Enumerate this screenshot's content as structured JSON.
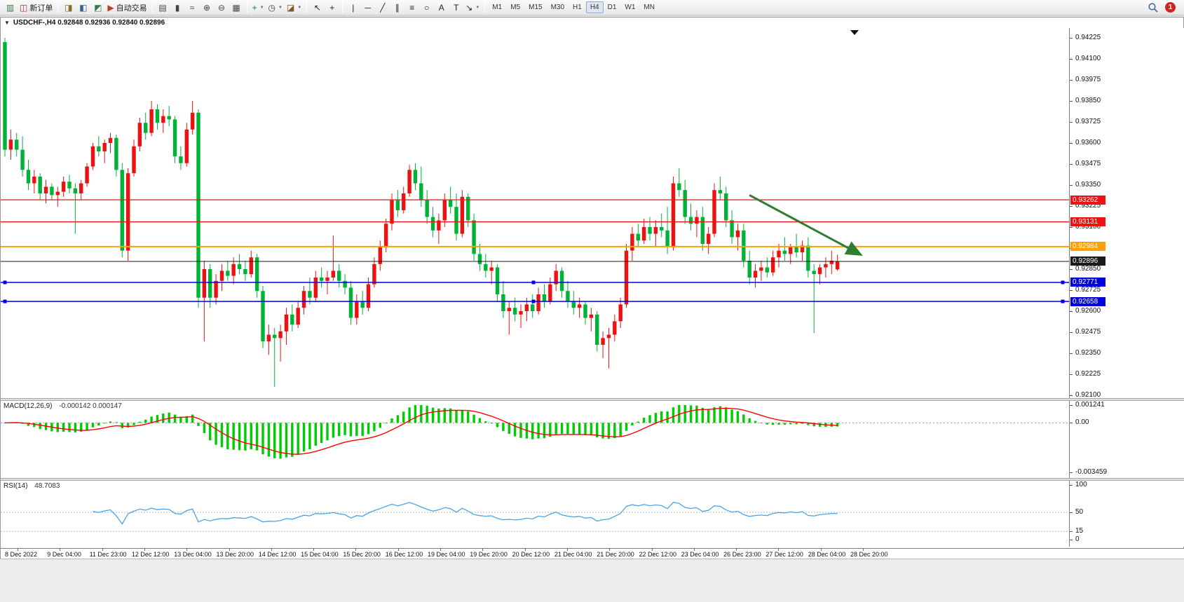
{
  "toolbar": {
    "groups": [
      {
        "items": [
          {
            "name": "new-chart-button",
            "icon": "chart-window-icon",
            "glyph": "▥",
            "color": "#2f7d44"
          },
          {
            "name": "new-order-button",
            "icon": "new-order-icon",
            "glyph": "◫",
            "color": "#b03030",
            "label": "新订单"
          }
        ]
      },
      {
        "items": [
          {
            "name": "profiles-button",
            "icon": "profiles-icon",
            "glyph": "◨",
            "color": "#8a6d1f"
          },
          {
            "name": "charts-list-button",
            "icon": "charts-list-icon",
            "glyph": "◧",
            "color": "#3a5f9f"
          },
          {
            "name": "navigator-button",
            "icon": "navigator-icon",
            "glyph": "◩",
            "color": "#2f7d4f"
          },
          {
            "name": "autotrading-button",
            "icon": "autotrading-icon",
            "glyph": "▶",
            "color": "#c23b22",
            "label": "自动交易"
          }
        ]
      },
      {
        "items": [
          {
            "name": "bar-chart-type-button",
            "icon": "ohlc-bars-icon",
            "glyph": "▤",
            "color": "#444444"
          },
          {
            "name": "candlestick-type-button",
            "icon": "candlestick-icon",
            "glyph": "▮",
            "color": "#444444"
          },
          {
            "name": "line-chart-type-button",
            "icon": "line-chart-icon",
            "glyph": "≈",
            "color": "#444444"
          },
          {
            "name": "zoom-in-button",
            "icon": "zoom-in-icon",
            "glyph": "⊕",
            "color": "#444444"
          },
          {
            "name": "zoom-out-button",
            "icon": "zoom-out-icon",
            "glyph": "⊖",
            "color": "#444444"
          },
          {
            "name": "tile-windows-button",
            "icon": "tile-windows-icon",
            "glyph": "▦",
            "color": "#444444"
          }
        ]
      },
      {
        "items": [
          {
            "name": "indicators-button",
            "icon": "add-indicator-icon",
            "glyph": "+",
            "color": "#1d7a1d",
            "caret": true
          },
          {
            "name": "periods-button",
            "icon": "clock-icon",
            "glyph": "◷",
            "color": "#444444",
            "caret": true
          },
          {
            "name": "templates-button",
            "icon": "template-icon",
            "glyph": "◪",
            "color": "#7a5c1d",
            "caret": true
          }
        ]
      },
      {
        "items": [
          {
            "name": "cursor-button",
            "icon": "cursor-icon",
            "glyph": "↖",
            "color": "#222222"
          },
          {
            "name": "crosshair-button",
            "icon": "crosshair-icon",
            "glyph": "+",
            "color": "#222222"
          }
        ]
      },
      {
        "items": [
          {
            "name": "vertical-line-button",
            "icon": "vertical-line-icon",
            "glyph": "|",
            "color": "#222222"
          },
          {
            "name": "horizontal-line-button",
            "icon": "horizontal-line-icon",
            "glyph": "─",
            "color": "#222222"
          },
          {
            "name": "trendline-button",
            "icon": "trendline-icon",
            "glyph": "╱",
            "color": "#222222"
          },
          {
            "name": "channel-button",
            "icon": "channel-icon",
            "glyph": "∥",
            "color": "#222222"
          },
          {
            "name": "fibonacci-button",
            "icon": "fibonacci-icon",
            "glyph": "≡",
            "color": "#222222"
          },
          {
            "name": "shapes-button",
            "icon": "shapes-icon",
            "glyph": "○",
            "color": "#222222"
          },
          {
            "name": "text-button",
            "icon": "text-icon",
            "glyph": "A",
            "color": "#222222"
          },
          {
            "name": "text-label-button",
            "icon": "text-label-icon",
            "glyph": "T",
            "color": "#222222"
          },
          {
            "name": "arrows-button",
            "icon": "arrow-tool-icon",
            "glyph": "↘",
            "color": "#222222",
            "caret": true
          }
        ]
      }
    ],
    "timeframes": [
      "M1",
      "M5",
      "M15",
      "M30",
      "H1",
      "H4",
      "D1",
      "W1",
      "MN"
    ],
    "active_timeframe": "H4",
    "notification_count": "1"
  },
  "chart_window": {
    "title": "USDCHF-,H4  0.92848 0.92936 0.92840 0.92896"
  },
  "chart_data": {
    "type": "candlestick",
    "symbol": "USDCHF-",
    "timeframe": "H4",
    "current_ohlc": {
      "open": 0.92848,
      "high": 0.92936,
      "low": 0.9284,
      "close": 0.92896
    },
    "price_axis": {
      "min": 0.921,
      "max": 0.94225,
      "step": 0.00125,
      "ticks": [
        "0.94225",
        "0.94100",
        "0.93975",
        "0.93850",
        "0.93725",
        "0.93600",
        "0.93475",
        "0.93350",
        "0.93225",
        "0.93100",
        "0.92975",
        "0.92850",
        "0.92725",
        "0.92600",
        "0.92475",
        "0.92350",
        "0.92225",
        "0.92100"
      ]
    },
    "time_labels": [
      "8 Dec 2022",
      "9 Dec 04:00",
      "11 Dec 23:00",
      "12 Dec 12:00",
      "13 Dec 04:00",
      "13 Dec 20:00",
      "14 Dec 12:00",
      "15 Dec 04:00",
      "15 Dec 20:00",
      "16 Dec 12:00",
      "19 Dec 04:00",
      "19 Dec 20:00",
      "20 Dec 12:00",
      "21 Dec 04:00",
      "21 Dec 20:00",
      "22 Dec 12:00",
      "23 Dec 04:00",
      "26 Dec 23:00",
      "27 Dec 12:00",
      "28 Dec 04:00",
      "28 Dec 20:00"
    ],
    "levels": [
      {
        "name": "resistance-line-1",
        "label": "0.93262",
        "price": 0.93262,
        "color": "#ee1111",
        "width": 1.3,
        "style": "solid"
      },
      {
        "name": "resistance-line-2",
        "label": "0.93131",
        "price": 0.93131,
        "color": "#ee1111",
        "width": 1.3,
        "style": "solid"
      },
      {
        "name": "pivot-line",
        "label": "0.92984",
        "price": 0.92984,
        "color": "#ffa000",
        "width": 2,
        "style": "solid"
      },
      {
        "name": "bid-price-line",
        "label": "0.92896",
        "price": 0.92896,
        "color": "#1a1a1a",
        "width": 1,
        "style": "solid"
      },
      {
        "name": "support-line-1",
        "label": "0.92771",
        "price": 0.92771,
        "color": "#0000dd",
        "width": 1.5,
        "style": "solid",
        "selected": true
      },
      {
        "name": "support-line-2",
        "label": "0.92658",
        "price": 0.92658,
        "color": "#0000dd",
        "width": 1.5,
        "style": "solid",
        "selected": true
      }
    ],
    "arrow": {
      "name": "trend-arrow",
      "from_index": 127,
      "from_price": 0.9329,
      "to_index": 146,
      "to_price": 0.92935,
      "color": "#2f7d32",
      "width": 3
    },
    "colors": {
      "up_candle": "#ee1111",
      "down_candle": "#00b336",
      "macd_histogram": "#00cc00",
      "macd_signal": "#ff0000",
      "rsi_line": "#4aa3e8",
      "background": "#ffffff"
    },
    "indicators": {
      "macd": {
        "label": "MACD(12,26,9)",
        "values_text": "-0.000142 0.000147",
        "fast": 12,
        "slow": 26,
        "signal_period": 9,
        "axis_max": 0.001241,
        "axis_min": -0.003459,
        "axis_max_label": "0.001241",
        "axis_zero_label": "0.00",
        "axis_min_label": "-0.003459"
      },
      "rsi": {
        "label": "RSI(14)",
        "value_text": "48.7083",
        "period": 14,
        "levels": [
          50,
          15
        ],
        "axis_labels": [
          "100",
          "50",
          "15",
          "0"
        ]
      }
    },
    "candles": [
      [
        0.942,
        0.94225,
        0.9352,
        0.9356
      ],
      [
        0.9356,
        0.9368,
        0.935,
        0.9362
      ],
      [
        0.9362,
        0.9366,
        0.9352,
        0.9356
      ],
      [
        0.9356,
        0.9364,
        0.934,
        0.9344
      ],
      [
        0.9344,
        0.935,
        0.9332,
        0.9336
      ],
      [
        0.9336,
        0.9344,
        0.933,
        0.934
      ],
      [
        0.934,
        0.9342,
        0.9326,
        0.933
      ],
      [
        0.933,
        0.9338,
        0.9324,
        0.9334
      ],
      [
        0.9334,
        0.9336,
        0.9326,
        0.9329
      ],
      [
        0.9329,
        0.9334,
        0.9322,
        0.9331
      ],
      [
        0.9331,
        0.934,
        0.9328,
        0.9337
      ],
      [
        0.9337,
        0.9341,
        0.933,
        0.9333
      ],
      [
        0.9333,
        0.9336,
        0.9306,
        0.933
      ],
      [
        0.933,
        0.9338,
        0.9326,
        0.9336
      ],
      [
        0.9336,
        0.9348,
        0.9334,
        0.9346
      ],
      [
        0.9346,
        0.936,
        0.9344,
        0.9358
      ],
      [
        0.9358,
        0.9364,
        0.9352,
        0.9355
      ],
      [
        0.9355,
        0.9362,
        0.9348,
        0.936
      ],
      [
        0.936,
        0.9366,
        0.9354,
        0.9363
      ],
      [
        0.9363,
        0.9365,
        0.934,
        0.9344
      ],
      [
        0.9344,
        0.9348,
        0.9292,
        0.9296
      ],
      [
        0.9296,
        0.9345,
        0.929,
        0.9342
      ],
      [
        0.9342,
        0.9362,
        0.934,
        0.9358
      ],
      [
        0.9358,
        0.9375,
        0.9355,
        0.9372
      ],
      [
        0.9372,
        0.9378,
        0.9362,
        0.9366
      ],
      [
        0.9366,
        0.9385,
        0.9364,
        0.938
      ],
      [
        0.938,
        0.9383,
        0.9368,
        0.9372
      ],
      [
        0.9372,
        0.938,
        0.9366,
        0.9376
      ],
      [
        0.9376,
        0.9382,
        0.937,
        0.9374
      ],
      [
        0.9374,
        0.9376,
        0.9348,
        0.9352
      ],
      [
        0.9352,
        0.9358,
        0.9344,
        0.9348
      ],
      [
        0.9348,
        0.9372,
        0.9346,
        0.9368
      ],
      [
        0.9368,
        0.9385,
        0.9365,
        0.9378
      ],
      [
        0.9378,
        0.938,
        0.9262,
        0.9268
      ],
      [
        0.9268,
        0.929,
        0.9242,
        0.9285
      ],
      [
        0.9285,
        0.9288,
        0.9262,
        0.9268
      ],
      [
        0.9268,
        0.9282,
        0.9264,
        0.9278
      ],
      [
        0.9278,
        0.9288,
        0.9272,
        0.9284
      ],
      [
        0.9284,
        0.929,
        0.9278,
        0.9281
      ],
      [
        0.9281,
        0.9292,
        0.9276,
        0.9288
      ],
      [
        0.9288,
        0.9294,
        0.9282,
        0.9285
      ],
      [
        0.9285,
        0.929,
        0.9278,
        0.9282
      ],
      [
        0.9282,
        0.9296,
        0.928,
        0.9292
      ],
      [
        0.9292,
        0.9294,
        0.9268,
        0.9272
      ],
      [
        0.9272,
        0.9275,
        0.9238,
        0.9242
      ],
      [
        0.9242,
        0.9252,
        0.9234,
        0.9246
      ],
      [
        0.9246,
        0.925,
        0.9215,
        0.9244
      ],
      [
        0.9244,
        0.9252,
        0.923,
        0.9248
      ],
      [
        0.9248,
        0.9262,
        0.924,
        0.9258
      ],
      [
        0.9258,
        0.9264,
        0.9248,
        0.9252
      ],
      [
        0.9252,
        0.9266,
        0.925,
        0.9262
      ],
      [
        0.9262,
        0.9275,
        0.9258,
        0.9272
      ],
      [
        0.9272,
        0.928,
        0.9264,
        0.9268
      ],
      [
        0.9268,
        0.9284,
        0.9266,
        0.928
      ],
      [
        0.928,
        0.9286,
        0.9274,
        0.9278
      ],
      [
        0.9278,
        0.9284,
        0.927,
        0.928
      ],
      [
        0.928,
        0.9305,
        0.9278,
        0.9284
      ],
      [
        0.9284,
        0.9288,
        0.9274,
        0.9278
      ],
      [
        0.9278,
        0.9282,
        0.927,
        0.9274
      ],
      [
        0.9274,
        0.9278,
        0.9252,
        0.9256
      ],
      [
        0.9256,
        0.927,
        0.9252,
        0.9266
      ],
      [
        0.9266,
        0.9272,
        0.9258,
        0.9262
      ],
      [
        0.9262,
        0.928,
        0.926,
        0.9276
      ],
      [
        0.9276,
        0.9292,
        0.9274,
        0.9288
      ],
      [
        0.9288,
        0.9302,
        0.9284,
        0.9298
      ],
      [
        0.9298,
        0.9315,
        0.9295,
        0.9312
      ],
      [
        0.9312,
        0.933,
        0.9308,
        0.9326
      ],
      [
        0.9326,
        0.9332,
        0.9316,
        0.932
      ],
      [
        0.932,
        0.9334,
        0.9318,
        0.933
      ],
      [
        0.933,
        0.9347,
        0.9328,
        0.9344
      ],
      [
        0.9344,
        0.9348,
        0.9332,
        0.9336
      ],
      [
        0.9336,
        0.9346,
        0.9322,
        0.9326
      ],
      [
        0.9326,
        0.9332,
        0.9312,
        0.9316
      ],
      [
        0.9316,
        0.9322,
        0.9304,
        0.9308
      ],
      [
        0.9308,
        0.9318,
        0.93,
        0.9314
      ],
      [
        0.9314,
        0.933,
        0.931,
        0.9326
      ],
      [
        0.9326,
        0.9334,
        0.9318,
        0.9322
      ],
      [
        0.9322,
        0.933,
        0.9302,
        0.9306
      ],
      [
        0.9306,
        0.9332,
        0.9304,
        0.9328
      ],
      [
        0.9328,
        0.933,
        0.931,
        0.9314
      ],
      [
        0.9314,
        0.9318,
        0.929,
        0.9294
      ],
      [
        0.9294,
        0.93,
        0.9284,
        0.9288
      ],
      [
        0.9288,
        0.9294,
        0.928,
        0.9284
      ],
      [
        0.9284,
        0.929,
        0.9276,
        0.9286
      ],
      [
        0.9286,
        0.9288,
        0.9266,
        0.927
      ],
      [
        0.927,
        0.9278,
        0.9256,
        0.926
      ],
      [
        0.926,
        0.9266,
        0.9246,
        0.9262
      ],
      [
        0.9262,
        0.9268,
        0.9254,
        0.9258
      ],
      [
        0.9258,
        0.9264,
        0.925,
        0.926
      ],
      [
        0.926,
        0.9268,
        0.9254,
        0.9264
      ],
      [
        0.9264,
        0.927,
        0.9256,
        0.926
      ],
      [
        0.926,
        0.9274,
        0.9258,
        0.927
      ],
      [
        0.927,
        0.9276,
        0.9262,
        0.9266
      ],
      [
        0.9266,
        0.928,
        0.9264,
        0.9276
      ],
      [
        0.9276,
        0.9288,
        0.9272,
        0.9284
      ],
      [
        0.9284,
        0.9286,
        0.9268,
        0.9272
      ],
      [
        0.9272,
        0.9278,
        0.9262,
        0.9266
      ],
      [
        0.9266,
        0.9272,
        0.9258,
        0.9262
      ],
      [
        0.9262,
        0.9268,
        0.9256,
        0.9264
      ],
      [
        0.9264,
        0.9266,
        0.9252,
        0.9256
      ],
      [
        0.9256,
        0.9262,
        0.9248,
        0.9258
      ],
      [
        0.9258,
        0.926,
        0.9236,
        0.924
      ],
      [
        0.924,
        0.9248,
        0.9232,
        0.9244
      ],
      [
        0.9244,
        0.925,
        0.9226,
        0.9246
      ],
      [
        0.9246,
        0.9258,
        0.9242,
        0.9254
      ],
      [
        0.9254,
        0.9268,
        0.925,
        0.9264
      ],
      [
        0.9264,
        0.93,
        0.9262,
        0.9296
      ],
      [
        0.9296,
        0.931,
        0.929,
        0.9306
      ],
      [
        0.9306,
        0.9312,
        0.9298,
        0.9302
      ],
      [
        0.9302,
        0.9315,
        0.93,
        0.931
      ],
      [
        0.931,
        0.9316,
        0.9302,
        0.9306
      ],
      [
        0.9306,
        0.9314,
        0.9298,
        0.931
      ],
      [
        0.931,
        0.9318,
        0.9304,
        0.9308
      ],
      [
        0.9308,
        0.9322,
        0.9294,
        0.9298
      ],
      [
        0.9298,
        0.934,
        0.9296,
        0.9336
      ],
      [
        0.9336,
        0.9345,
        0.9328,
        0.9332
      ],
      [
        0.9332,
        0.9338,
        0.9312,
        0.9316
      ],
      [
        0.9316,
        0.9324,
        0.9308,
        0.9312
      ],
      [
        0.9312,
        0.932,
        0.9304,
        0.9316
      ],
      [
        0.9316,
        0.9322,
        0.9296,
        0.93
      ],
      [
        0.93,
        0.931,
        0.9294,
        0.9306
      ],
      [
        0.9306,
        0.9336,
        0.9304,
        0.9332
      ],
      [
        0.9332,
        0.934,
        0.9326,
        0.933
      ],
      [
        0.933,
        0.9334,
        0.931,
        0.9314
      ],
      [
        0.9314,
        0.932,
        0.93,
        0.9304
      ],
      [
        0.9304,
        0.9312,
        0.9296,
        0.9308
      ],
      [
        0.9308,
        0.9312,
        0.9286,
        0.929
      ],
      [
        0.929,
        0.9296,
        0.9276,
        0.928
      ],
      [
        0.928,
        0.9288,
        0.9274,
        0.9284
      ],
      [
        0.9284,
        0.929,
        0.9278,
        0.9286
      ],
      [
        0.9286,
        0.9292,
        0.928,
        0.9283
      ],
      [
        0.9283,
        0.9296,
        0.9281,
        0.9292
      ],
      [
        0.9292,
        0.93,
        0.9286,
        0.9296
      ],
      [
        0.9296,
        0.9304,
        0.929,
        0.9294
      ],
      [
        0.9294,
        0.93,
        0.9288,
        0.9298
      ],
      [
        0.9298,
        0.9306,
        0.9292,
        0.9295
      ],
      [
        0.9295,
        0.9302,
        0.929,
        0.9299
      ],
      [
        0.9299,
        0.9304,
        0.928,
        0.9284
      ],
      [
        0.9284,
        0.9288,
        0.9247,
        0.9282
      ],
      [
        0.9282,
        0.9288,
        0.9276,
        0.9286
      ],
      [
        0.9286,
        0.9292,
        0.928,
        0.9288
      ],
      [
        0.9288,
        0.9296,
        0.9282,
        0.929
      ],
      [
        0.92848,
        0.92936,
        0.9284,
        0.92896
      ]
    ]
  }
}
